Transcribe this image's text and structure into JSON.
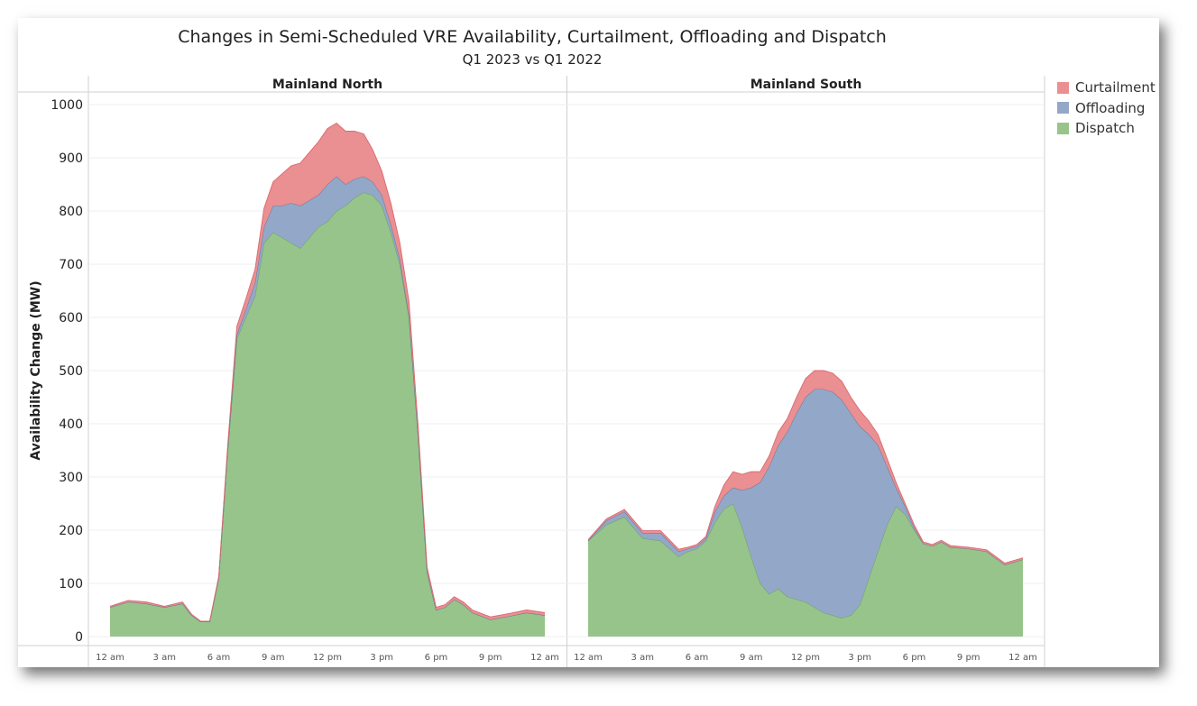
{
  "title": "Changes in Semi-Scheduled VRE Availability, Curtailment, Offloading and Dispatch",
  "subtitle": "Q1 2023 vs Q1 2022",
  "legend": [
    {
      "name": "Curtailment",
      "color": "#ea8f92"
    },
    {
      "name": "Offloading",
      "color": "#93a8c8"
    },
    {
      "name": "Dispatch",
      "color": "#97c48b"
    }
  ],
  "chart_data": {
    "type": "area",
    "stacked": true,
    "ylabel": "Availability Change (MW)",
    "ylim": [
      0,
      1000
    ],
    "yticks": [
      0,
      100,
      200,
      300,
      400,
      500,
      600,
      700,
      800,
      900,
      1000
    ],
    "x_unit": "hour of day",
    "xlim": [
      0,
      24
    ],
    "xtick_labels": [
      "12 am",
      "3 am",
      "6 am",
      "9 am",
      "12 pm",
      "3 pm",
      "6 pm",
      "9 pm",
      "12 am"
    ],
    "series_order": [
      "Dispatch",
      "Offloading",
      "Curtailment"
    ],
    "grid": true,
    "legend_position": "right",
    "panels": [
      {
        "name": "Mainland North",
        "x": [
          0,
          1,
          2,
          3,
          4,
          4.5,
          5,
          5.5,
          6,
          6.5,
          7,
          7.5,
          8,
          8.5,
          9,
          9.5,
          10,
          10.5,
          11,
          11.5,
          12,
          12.5,
          13,
          13.5,
          14,
          14.5,
          15,
          15.5,
          16,
          16.5,
          17,
          17.5,
          18,
          18.5,
          19,
          19.5,
          20,
          21,
          22,
          23,
          24
        ],
        "series": [
          {
            "name": "Dispatch",
            "values": [
              55,
              65,
              62,
              55,
              62,
              40,
              28,
              28,
              110,
              350,
              560,
              600,
              640,
              740,
              760,
              750,
              740,
              730,
              750,
              770,
              780,
              800,
              810,
              825,
              835,
              830,
              810,
              760,
              700,
              600,
              380,
              120,
              50,
              55,
              70,
              60,
              45,
              32,
              38,
              45,
              40
            ]
          },
          {
            "name": "Offloading",
            "values": [
              0,
              0,
              0,
              0,
              0,
              0,
              0,
              0,
              0,
              3,
              8,
              15,
              25,
              30,
              50,
              60,
              75,
              80,
              70,
              60,
              70,
              65,
              40,
              35,
              30,
              25,
              20,
              15,
              10,
              5,
              3,
              2,
              0,
              0,
              0,
              0,
              0,
              0,
              0,
              0,
              0
            ]
          },
          {
            "name": "Curtailment",
            "values": [
              2,
              3,
              3,
              2,
              3,
              2,
              1,
              1,
              3,
              8,
              15,
              20,
              25,
              35,
              45,
              60,
              70,
              80,
              90,
              100,
              105,
              100,
              100,
              90,
              80,
              60,
              45,
              40,
              30,
              25,
              15,
              8,
              5,
              5,
              5,
              5,
              5,
              5,
              5,
              5,
              5
            ]
          }
        ]
      },
      {
        "name": "Mainland South",
        "x": [
          0,
          1,
          2,
          3,
          4,
          5,
          5.5,
          6,
          6.5,
          7,
          7.5,
          8,
          8.5,
          9,
          9.5,
          10,
          10.5,
          11,
          11.5,
          12,
          12.5,
          13,
          13.5,
          14,
          14.5,
          15,
          15.5,
          16,
          16.5,
          17,
          17.5,
          18,
          18.5,
          19,
          19.5,
          20,
          21,
          22,
          23,
          24
        ],
        "series": [
          {
            "name": "Dispatch",
            "values": [
              180,
              210,
              225,
              185,
              180,
              150,
              160,
              165,
              180,
              215,
              240,
              250,
              205,
              150,
              100,
              80,
              90,
              75,
              70,
              65,
              55,
              45,
              40,
              35,
              40,
              60,
              110,
              160,
              210,
              245,
              230,
              200,
              175,
              170,
              178,
              168,
              165,
              160,
              135,
              145
            ]
          },
          {
            "name": "Offloading",
            "values": [
              0,
              8,
              10,
              10,
              15,
              10,
              5,
              5,
              5,
              20,
              25,
              30,
              70,
              130,
              190,
              240,
              270,
              310,
              350,
              385,
              410,
              420,
              420,
              410,
              380,
              335,
              270,
              200,
              110,
              35,
              15,
              5,
              0,
              0,
              0,
              0,
              0,
              0,
              0,
              0
            ]
          },
          {
            "name": "Curtailment",
            "values": [
              2,
              3,
              4,
              4,
              4,
              4,
              3,
              3,
              3,
              10,
              20,
              30,
              30,
              30,
              20,
              20,
              25,
              25,
              30,
              35,
              35,
              35,
              35,
              35,
              30,
              30,
              25,
              20,
              15,
              10,
              5,
              5,
              3,
              3,
              3,
              3,
              3,
              3,
              3,
              3
            ]
          }
        ]
      }
    ]
  }
}
